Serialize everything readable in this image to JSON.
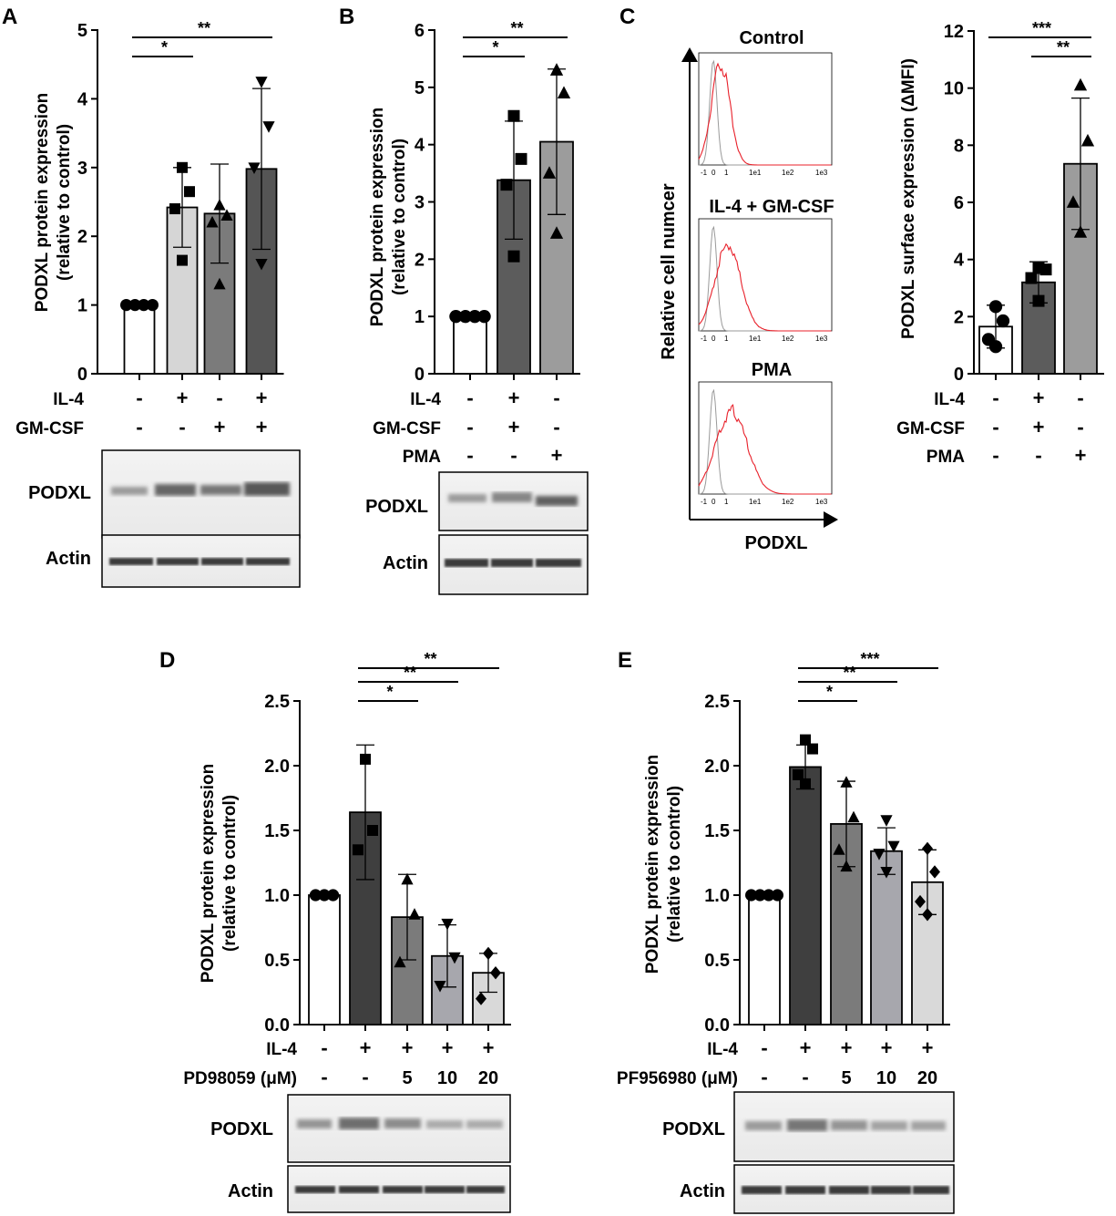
{
  "colors": {
    "black": "#000000",
    "white": "#ffffff",
    "red": "#e8202a",
    "gray_line": "#9a9a9a"
  },
  "panels": {
    "A": {
      "letter": "A",
      "ylabel1": "PODXL protein expression",
      "ylabel2": "(relative to control)"
    },
    "B": {
      "letter": "B",
      "ylabel1": "PODXL protein expression",
      "ylabel2": "(relative to control)"
    },
    "C": {
      "letter": "C",
      "flow_titles": [
        "Control",
        "IL-4 + GM-CSF",
        "PMA"
      ],
      "flow_ylabel": "Relative cell numcer",
      "flow_xlabel": "PODXL",
      "flow_ticks": [
        "-1",
        "0",
        "1",
        "1e1",
        "1e2",
        "1e3"
      ],
      "ylabel": "PODXL surface expression (ΔMFI)"
    },
    "D": {
      "letter": "D",
      "ylabel1": "PODXL protein expression",
      "ylabel2": "(relative to control)"
    },
    "E": {
      "letter": "E",
      "ylabel1": "PODXL protein expression",
      "ylabel2": "(relative to control)"
    }
  },
  "blots": {
    "podxl": "PODXL",
    "actin": "Actin"
  },
  "chart_data": [
    {
      "id": "A",
      "type": "bar",
      "ylim": [
        0,
        5
      ],
      "yticks": [
        "0",
        "1",
        "2",
        "3",
        "4",
        "5"
      ],
      "values": [
        1.0,
        2.42,
        2.33,
        2.98
      ],
      "errors": [
        0,
        0.58,
        0.72,
        1.17
      ],
      "fills": [
        "#ffffff",
        "#d6d6d6",
        "#7b7b7b",
        "#555555"
      ],
      "points": [
        [
          1,
          1,
          1,
          1
        ],
        [
          3.0,
          2.65,
          2.4,
          1.65
        ],
        [
          2.45,
          2.3,
          2.2,
          1.3
        ],
        [
          4.25,
          3.6,
          3.0,
          1.6
        ]
      ],
      "markers": [
        "circle",
        "square",
        "triangle",
        "tri-down"
      ],
      "treatment_rows": [
        {
          "label": "IL-4",
          "signs": [
            "-",
            "+",
            "-",
            "+"
          ]
        },
        {
          "label": "GM-CSF",
          "signs": [
            "-",
            "-",
            "+",
            "+"
          ]
        }
      ],
      "significance": [
        {
          "from": 0,
          "to": 1,
          "label": "*"
        },
        {
          "from": 0,
          "to": 3,
          "label": "**"
        }
      ]
    },
    {
      "id": "B",
      "type": "bar",
      "ylim": [
        0,
        6
      ],
      "yticks": [
        "0",
        "1",
        "2",
        "3",
        "4",
        "5",
        "6"
      ],
      "values": [
        1.0,
        3.38,
        4.05
      ],
      "errors": [
        0,
        1.03,
        1.27
      ],
      "fills": [
        "#ffffff",
        "#5c5c5c",
        "#9c9c9c"
      ],
      "points": [
        [
          1,
          1,
          1,
          1
        ],
        [
          4.5,
          3.75,
          3.3,
          2.05
        ],
        [
          5.3,
          4.9,
          3.5,
          2.45
        ]
      ],
      "markers": [
        "circle",
        "square",
        "triangle"
      ],
      "treatment_rows": [
        {
          "label": "IL-4",
          "signs": [
            "-",
            "+",
            "-"
          ]
        },
        {
          "label": "GM-CSF",
          "signs": [
            "-",
            "+",
            "-"
          ]
        },
        {
          "label": "PMA",
          "signs": [
            "-",
            "-",
            "+"
          ]
        }
      ],
      "significance": [
        {
          "from": 0,
          "to": 1,
          "label": "*"
        },
        {
          "from": 0,
          "to": 2,
          "label": "**"
        }
      ]
    },
    {
      "id": "C",
      "type": "bar",
      "ylim": [
        0,
        12
      ],
      "yticks": [
        "0",
        "2",
        "4",
        "6",
        "8",
        "10",
        "12"
      ],
      "values": [
        1.65,
        3.2,
        7.35
      ],
      "errors": [
        0.75,
        0.72,
        2.3
      ],
      "fills": [
        "#ffffff",
        "#5c5c5c",
        "#9c9c9c"
      ],
      "points": [
        [
          2.35,
          1.85,
          1.2,
          0.95
        ],
        [
          3.7,
          3.65,
          3.35,
          2.55
        ],
        [
          10.1,
          8.15,
          6.0,
          4.95
        ]
      ],
      "markers": [
        "circle",
        "square",
        "triangle"
      ],
      "treatment_rows": [
        {
          "label": "IL-4",
          "signs": [
            "-",
            "+",
            "-"
          ]
        },
        {
          "label": "GM-CSF",
          "signs": [
            "-",
            "+",
            "-"
          ]
        },
        {
          "label": "PMA",
          "signs": [
            "-",
            "-",
            "+"
          ]
        }
      ],
      "significance": [
        {
          "from": 0,
          "to": 2,
          "label": "***"
        },
        {
          "from": 1,
          "to": 2,
          "label": "**"
        }
      ]
    },
    {
      "id": "D",
      "type": "bar",
      "ylim": [
        0,
        2.5
      ],
      "yticks": [
        "0.0",
        "0.5",
        "1.0",
        "1.5",
        "2.0",
        "2.5"
      ],
      "values": [
        1.0,
        1.64,
        0.83,
        0.53,
        0.4
      ],
      "errors": [
        0,
        0.52,
        0.33,
        0.24,
        0.15
      ],
      "fills": [
        "#ffffff",
        "#3f3f3f",
        "#7b7b7b",
        "#a7a7ad",
        "#d9d9d9"
      ],
      "points": [
        [
          1,
          1,
          1
        ],
        [
          2.05,
          1.5,
          1.35
        ],
        [
          1.12,
          0.85,
          0.48
        ],
        [
          0.78,
          0.52,
          0.3
        ],
        [
          0.55,
          0.4,
          0.2
        ]
      ],
      "markers": [
        "circle",
        "square",
        "triangle",
        "tri-down",
        "diamond"
      ],
      "treatment_rows": [
        {
          "label": "IL-4",
          "signs": [
            "-",
            "+",
            "+",
            "+",
            "+"
          ]
        },
        {
          "label": "PD98059 (μM)",
          "signs": [
            "-",
            "-",
            "5",
            "10",
            "20"
          ]
        }
      ],
      "significance": [
        {
          "from": 1,
          "to": 2,
          "label": "*"
        },
        {
          "from": 1,
          "to": 3,
          "label": "**"
        },
        {
          "from": 1,
          "to": 4,
          "label": "**"
        }
      ]
    },
    {
      "id": "E",
      "type": "bar",
      "ylim": [
        0,
        2.5
      ],
      "yticks": [
        "0.0",
        "0.5",
        "1.0",
        "1.5",
        "2.0",
        "2.5"
      ],
      "values": [
        1.0,
        1.99,
        1.55,
        1.34,
        1.1
      ],
      "errors": [
        0,
        0.17,
        0.33,
        0.18,
        0.25
      ],
      "fills": [
        "#ffffff",
        "#3f3f3f",
        "#7b7b7b",
        "#a7a7ad",
        "#d9d9d9"
      ],
      "points": [
        [
          1,
          1,
          1,
          1
        ],
        [
          2.2,
          2.13,
          1.93,
          1.86
        ],
        [
          1.87,
          1.6,
          1.35,
          1.22
        ],
        [
          1.58,
          1.38,
          1.32,
          1.18
        ],
        [
          1.36,
          1.18,
          0.95,
          0.85
        ]
      ],
      "markers": [
        "circle",
        "square",
        "triangle",
        "tri-down",
        "diamond"
      ],
      "treatment_rows": [
        {
          "label": "IL-4",
          "signs": [
            "-",
            "+",
            "+",
            "+",
            "+"
          ]
        },
        {
          "label": "PF956980 (μM)",
          "signs": [
            "-",
            "-",
            "5",
            "10",
            "20"
          ]
        }
      ],
      "significance": [
        {
          "from": 1,
          "to": 2,
          "label": "*"
        },
        {
          "from": 1,
          "to": 3,
          "label": "**"
        },
        {
          "from": 1,
          "to": 4,
          "label": "***"
        }
      ]
    }
  ]
}
